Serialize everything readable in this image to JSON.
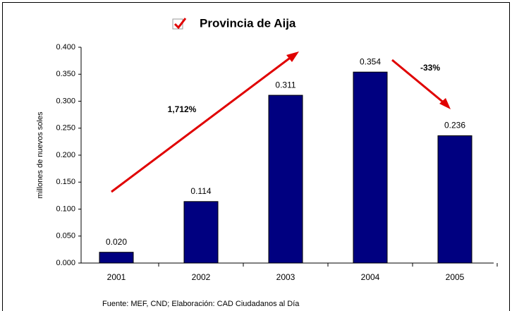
{
  "chart_data": {
    "type": "bar",
    "title": "Provincia de Aija",
    "y_label": "millones de nuevos soles",
    "categories": [
      "2001",
      "2002",
      "2003",
      "2004",
      "2005"
    ],
    "values": [
      0.02,
      0.114,
      0.311,
      0.354,
      0.236
    ],
    "value_labels": [
      "0.020",
      "0.114",
      "0.311",
      "0.354",
      "0.236"
    ],
    "color": "#000080",
    "ylim": [
      0,
      0.4
    ],
    "yticks": [
      {
        "value": 0,
        "label": "0.000"
      },
      {
        "value": 0.05,
        "label": "0.050"
      },
      {
        "value": 0.1,
        "label": "0.100"
      },
      {
        "value": 0.15,
        "label": "0.150"
      },
      {
        "value": 0.2,
        "label": "0.200"
      },
      {
        "value": 0.25,
        "label": "0.250"
      },
      {
        "value": 0.3,
        "label": "0.300"
      },
      {
        "value": 0.35,
        "label": "0.350"
      },
      {
        "value": 0.4,
        "label": "0.400"
      }
    ],
    "grid": false,
    "annotations": [
      "1,712%",
      "-33%"
    ],
    "source": "Fuente: MEF, CND; Elaboración: CAD Ciudadanos al Día"
  }
}
